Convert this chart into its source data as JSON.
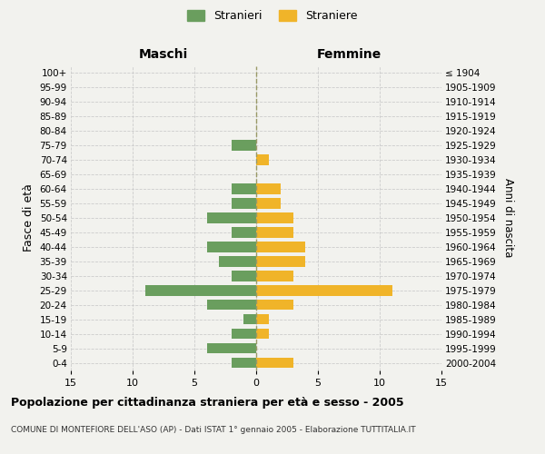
{
  "age_groups": [
    "0-4",
    "5-9",
    "10-14",
    "15-19",
    "20-24",
    "25-29",
    "30-34",
    "35-39",
    "40-44",
    "45-49",
    "50-54",
    "55-59",
    "60-64",
    "65-69",
    "70-74",
    "75-79",
    "80-84",
    "85-89",
    "90-94",
    "95-99",
    "100+"
  ],
  "birth_years": [
    "2000-2004",
    "1995-1999",
    "1990-1994",
    "1985-1989",
    "1980-1984",
    "1975-1979",
    "1970-1974",
    "1965-1969",
    "1960-1964",
    "1955-1959",
    "1950-1954",
    "1945-1949",
    "1940-1944",
    "1935-1939",
    "1930-1934",
    "1925-1929",
    "1920-1924",
    "1915-1919",
    "1910-1914",
    "1905-1909",
    "≤ 1904"
  ],
  "maschi": [
    2,
    4,
    2,
    1,
    4,
    9,
    2,
    3,
    4,
    2,
    4,
    2,
    2,
    0,
    0,
    2,
    0,
    0,
    0,
    0,
    0
  ],
  "femmine": [
    3,
    0,
    1,
    1,
    3,
    11,
    3,
    4,
    4,
    3,
    3,
    2,
    2,
    0,
    1,
    0,
    0,
    0,
    0,
    0,
    0
  ],
  "maschi_color": "#6a9e5e",
  "femmine_color": "#f0b429",
  "background_color": "#f2f2ee",
  "grid_color": "#cccccc",
  "xlim": 15,
  "title": "Popolazione per cittadinanza straniera per età e sesso - 2005",
  "subtitle": "COMUNE DI MONTEFIORE DELL'ASO (AP) - Dati ISTAT 1° gennaio 2005 - Elaborazione TUTTITALIA.IT",
  "ylabel_left": "Fasce di età",
  "ylabel_right": "Anni di nascita",
  "label_maschi": "Stranieri",
  "label_femmine": "Straniere",
  "header_maschi": "Maschi",
  "header_femmine": "Femmine"
}
